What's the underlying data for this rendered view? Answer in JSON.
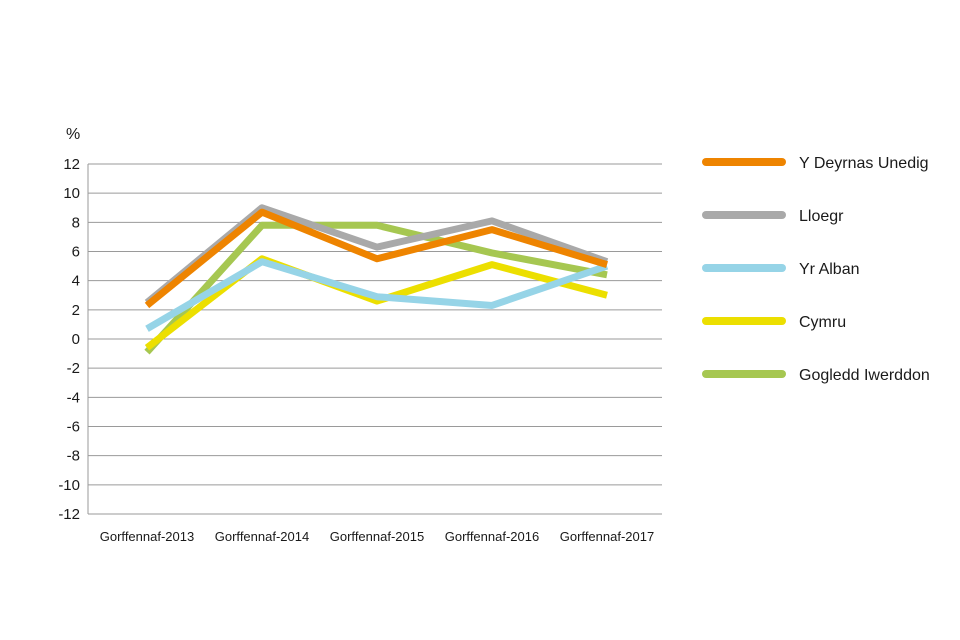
{
  "chart_data": {
    "type": "line",
    "title": "",
    "xlabel": "",
    "ylabel": "%",
    "ylim": [
      -12,
      12
    ],
    "yticks": [
      12,
      10,
      8,
      6,
      4,
      2,
      0,
      -2,
      -4,
      -6,
      -8,
      -10,
      -12
    ],
    "grid": true,
    "legend_position": "right",
    "categories": [
      "Gorffennaf-2013",
      "Gorffennaf-2014",
      "Gorffennaf-2015",
      "Gorffennaf-2016",
      "Gorffennaf-2017"
    ],
    "series": [
      {
        "name": "Y Deyrnas Unedig",
        "color": "#ee8400",
        "values": [
          2.3,
          8.7,
          5.5,
          7.5,
          5.1
        ]
      },
      {
        "name": "Lloegr",
        "color": "#a9a9a9",
        "values": [
          2.5,
          9.0,
          6.3,
          8.1,
          5.3
        ]
      },
      {
        "name": "Yr Alban",
        "color": "#96d4e7",
        "values": [
          0.7,
          5.3,
          2.9,
          2.3,
          5.0
        ]
      },
      {
        "name": "Cymru",
        "color": "#ecdf00",
        "values": [
          -0.6,
          5.5,
          2.6,
          5.1,
          3.0
        ]
      },
      {
        "name": "Gogledd Iwerddon",
        "color": "#a6c751",
        "values": [
          -0.9,
          7.8,
          7.8,
          5.9,
          4.4
        ]
      }
    ]
  }
}
